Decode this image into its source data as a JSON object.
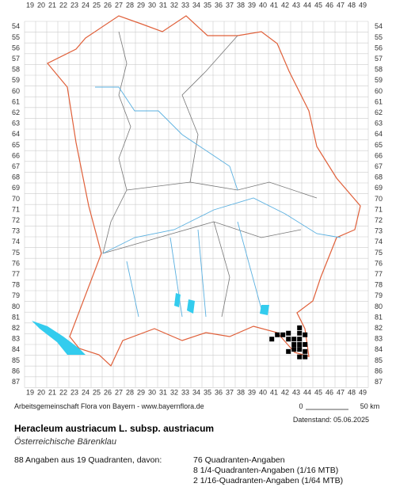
{
  "map": {
    "columns": [
      19,
      20,
      21,
      22,
      23,
      24,
      25,
      26,
      27,
      28,
      29,
      30,
      31,
      32,
      33,
      34,
      35,
      36,
      37,
      38,
      39,
      40,
      41,
      42,
      43,
      44,
      45,
      46,
      47,
      48,
      49
    ],
    "rows": [
      54,
      55,
      56,
      57,
      58,
      59,
      60,
      61,
      62,
      63,
      64,
      65,
      66,
      67,
      68,
      69,
      70,
      71,
      72,
      73,
      74,
      75,
      76,
      77,
      78,
      79,
      80,
      81,
      82,
      83,
      84,
      85,
      86,
      87
    ],
    "occurrences": [
      [
        43.3,
        81.95
      ],
      [
        42.3,
        82.45
      ],
      [
        43.3,
        82.45
      ],
      [
        41.3,
        82.6
      ],
      [
        41.8,
        82.6
      ],
      [
        43.8,
        82.6
      ],
      [
        40.8,
        83.0
      ],
      [
        42.3,
        83.0
      ],
      [
        42.8,
        83.0
      ],
      [
        43.3,
        83.0
      ],
      [
        42.8,
        83.5
      ],
      [
        43.3,
        83.5
      ],
      [
        43.8,
        83.5
      ],
      [
        42.8,
        83.95
      ],
      [
        43.3,
        83.95
      ],
      [
        42.3,
        84.15
      ],
      [
        43.8,
        84.15
      ],
      [
        43.3,
        84.65
      ],
      [
        43.8,
        84.65
      ]
    ]
  },
  "footer": {
    "credit": "Arbeitsgemeinschaft Flora von Bayern - www.bayernflora.de",
    "scale_start": "0",
    "scale_end": "50 km",
    "date": "Datenstand: 05.06.2025"
  },
  "species": {
    "name": "Heracleum austriacum L. subsp. austriacum",
    "common_name": "Österreichische Bärenklau"
  },
  "summary": {
    "total": "88 Angaben aus 19 Quadranten, davon:",
    "lines": [
      "76 Quadranten-Angaben",
      "8 1/4-Quadranten-Angaben (1/16 MTB)",
      "2 1/16-Quadranten-Angaben (1/64 MTB)"
    ]
  }
}
